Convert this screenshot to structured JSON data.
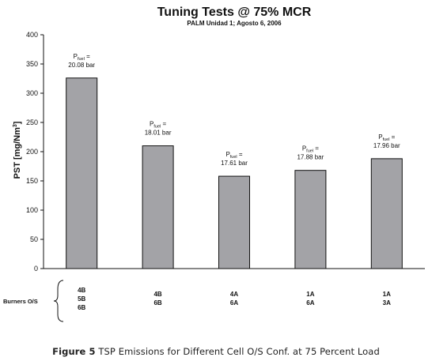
{
  "chart_data": {
    "type": "bar",
    "title": "Tuning Tests @ 75% MCR",
    "subtitle": "PALM Unidad 1; Agosto 6, 2006",
    "ylabel": "PST [mg/Nm³]",
    "ylim": [
      0,
      400
    ],
    "yticks": [
      0,
      50,
      100,
      150,
      200,
      250,
      300,
      350,
      400
    ],
    "grid": false,
    "categories": [
      "4B 5B 6B",
      "4B 6B",
      "4A 6A",
      "1A 6A",
      "1A 3A"
    ],
    "values": [
      326,
      210,
      158,
      168,
      188
    ],
    "bar_color": "#a3a3a7",
    "annotations": [
      {
        "prefix": "P",
        "sub": "fuel",
        "suffix": " =",
        "value": "20.08 bar"
      },
      {
        "prefix": "P",
        "sub": "fuel",
        "suffix": " =",
        "value": "18.01 bar"
      },
      {
        "prefix": "P",
        "sub": "fuel",
        "suffix": " =",
        "value": "17.61 bar"
      },
      {
        "prefix": "P",
        "sub": "fuel",
        "suffix": " =",
        "value": "17.88 bar"
      },
      {
        "prefix": "P",
        "sub": "fuel",
        "suffix": " =",
        "value": "17.96 bar"
      }
    ],
    "burners_label": "Burners O/S",
    "burners": [
      [
        "4B",
        "5B",
        "6B"
      ],
      [
        "4B",
        "6B"
      ],
      [
        "4A",
        "6A"
      ],
      [
        "1A",
        "6A"
      ],
      [
        "1A",
        "3A"
      ]
    ]
  },
  "caption": {
    "figure_label": "Figure 5",
    "text": "TSP Emissions for Different Cell O/S Conf. at 75 Percent Load"
  }
}
